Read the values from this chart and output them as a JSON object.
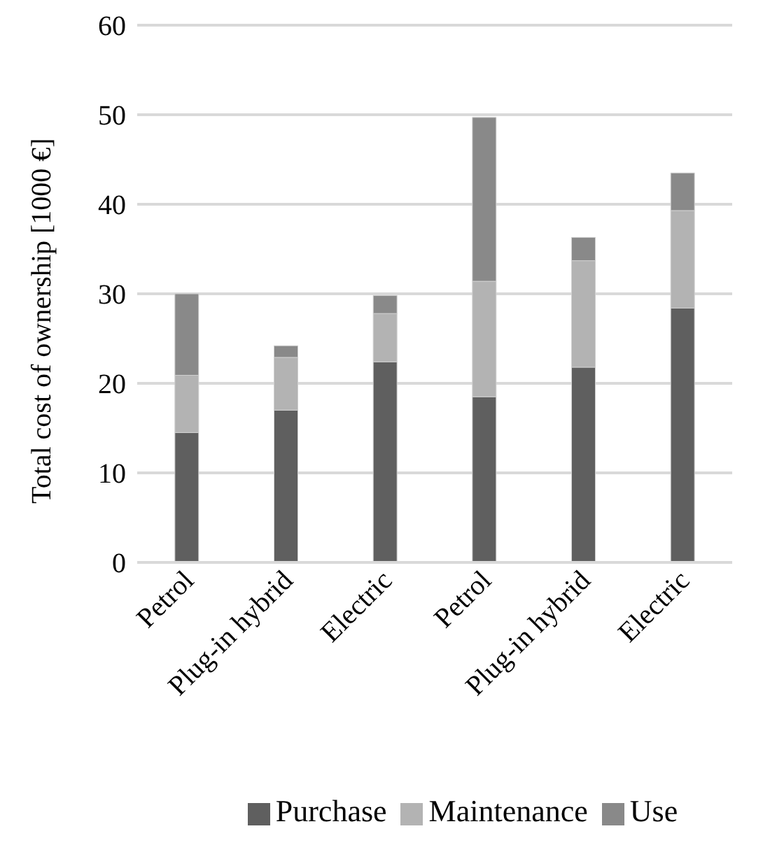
{
  "chart_data": {
    "type": "bar",
    "stacked": true,
    "ylabel": "Total cost of ownership [1000 €]",
    "categories": [
      "Petrol",
      "Plug-in hybrid",
      "Electric",
      "Petrol",
      "Plug-in hybrid",
      "Electric"
    ],
    "series": [
      {
        "name": "Purchase",
        "color": "#5f5f5f",
        "values": [
          14.5,
          17.0,
          22.4,
          18.5,
          21.8,
          28.4
        ]
      },
      {
        "name": "Maintenance",
        "color": "#b3b3b3",
        "values": [
          6.4,
          5.9,
          5.4,
          12.9,
          11.9,
          10.9
        ]
      },
      {
        "name": "Use",
        "color": "#898989",
        "values": [
          9.1,
          1.3,
          2.0,
          18.3,
          2.6,
          4.2
        ]
      }
    ],
    "ylim": [
      0,
      60
    ],
    "yticks": [
      0,
      10,
      20,
      30,
      40,
      50,
      60
    ],
    "grid": "y",
    "legend": "bottom"
  }
}
